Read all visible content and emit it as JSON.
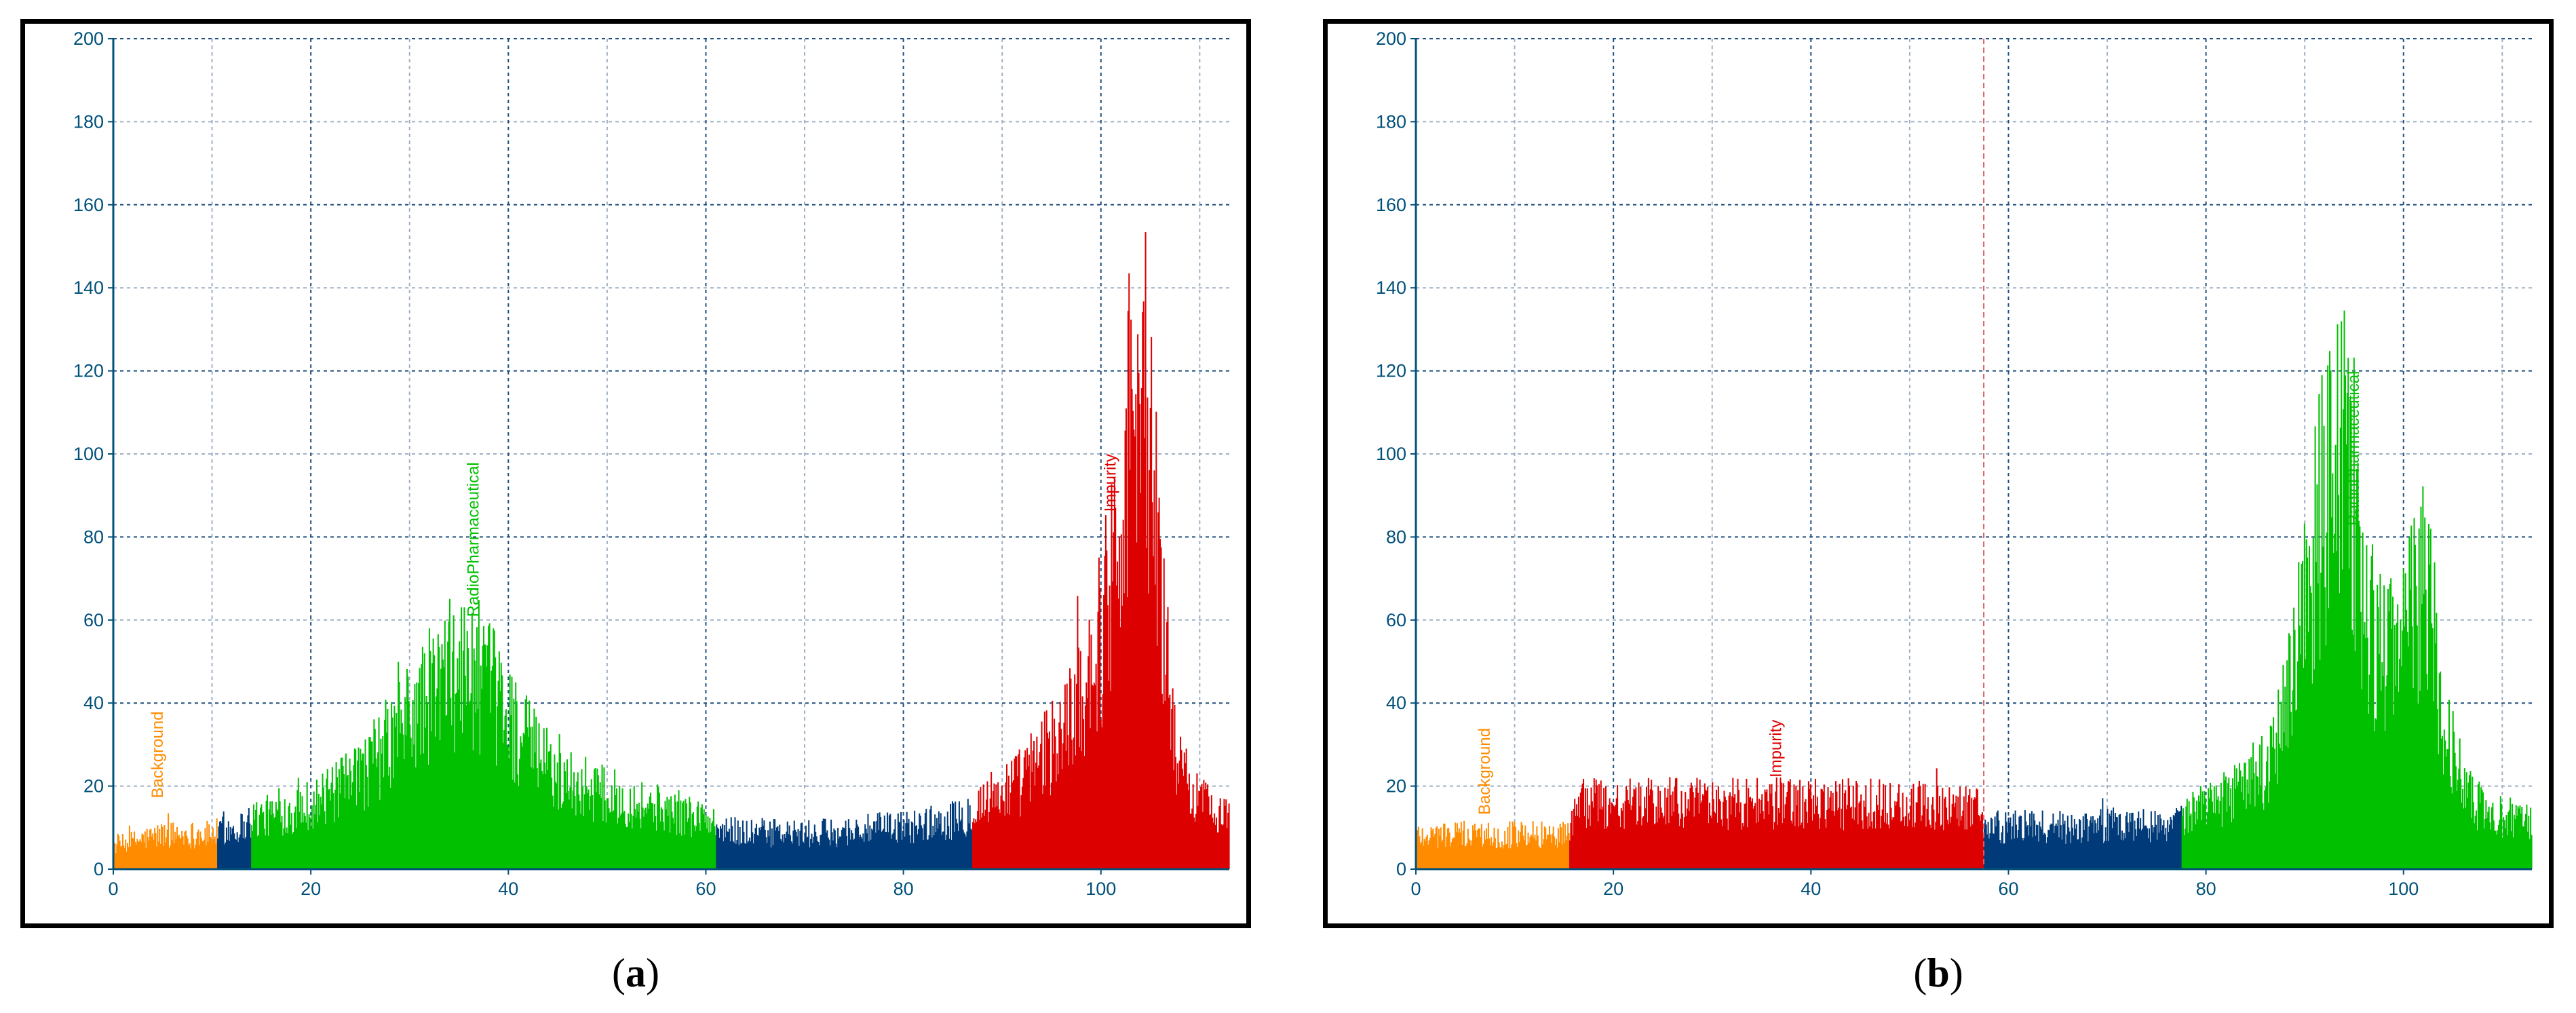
{
  "colors": {
    "background_region": "#ff8c00",
    "unassigned_region": "#003a78",
    "radiopharmaceutical_region": "#00c000",
    "impurity_region": "#dd0000",
    "axis": "#00507a",
    "grid_major": "#1e4f7f",
    "grid_minor": "#9fb0c4",
    "marker_line": "#e06060"
  },
  "captions": [
    {
      "paren_open": "(",
      "letter": "a",
      "paren_close": ")"
    },
    {
      "paren_open": "(",
      "letter": "b",
      "paren_close": ")"
    }
  ],
  "chart_data": [
    {
      "type": "bar",
      "panel": "a",
      "title": "",
      "xlabel": "",
      "ylabel": "",
      "xlim": [
        0,
        113
      ],
      "ylim": [
        0,
        200
      ],
      "x_ticks": [
        0,
        20,
        40,
        60,
        80,
        100
      ],
      "y_ticks": [
        0,
        20,
        40,
        60,
        80,
        100,
        120,
        140,
        160,
        180,
        200
      ],
      "grid": true,
      "regions": [
        {
          "label": "Background",
          "color": "#ff8c00",
          "x_start": 0,
          "x_end": 10.5,
          "label_x": 5,
          "label_y_top": 38
        },
        {
          "label": "",
          "color": "#003a78",
          "x_start": 10.5,
          "x_end": 14
        },
        {
          "label": "RadioPharmaceutical",
          "color": "#00c000",
          "x_start": 14,
          "x_end": 61,
          "label_x": 37,
          "label_y_top": 98
        },
        {
          "label": "",
          "color": "#003a78",
          "x_start": 61,
          "x_end": 87
        },
        {
          "label": "Impurity",
          "color": "#dd0000",
          "x_start": 87,
          "x_end": 113,
          "label_x": 101.5,
          "label_y_top": 100
        }
      ],
      "envelope": [
        [
          0,
          6
        ],
        [
          5,
          9
        ],
        [
          10,
          9
        ],
        [
          11,
          10
        ],
        [
          13,
          11
        ],
        [
          14,
          13
        ],
        [
          18,
          15
        ],
        [
          22,
          19
        ],
        [
          25,
          24
        ],
        [
          28,
          33
        ],
        [
          31,
          42
        ],
        [
          33,
          48
        ],
        [
          35,
          52
        ],
        [
          37,
          50
        ],
        [
          39,
          43
        ],
        [
          42,
          32
        ],
        [
          45,
          24
        ],
        [
          50,
          19
        ],
        [
          55,
          16
        ],
        [
          60,
          13
        ],
        [
          61,
          10
        ],
        [
          70,
          9
        ],
        [
          80,
          11
        ],
        [
          86,
          13
        ],
        [
          87,
          16
        ],
        [
          92,
          23
        ],
        [
          96,
          35
        ],
        [
          98,
          46
        ],
        [
          100,
          60
        ],
        [
          101,
          78
        ],
        [
          102,
          100
        ],
        [
          103,
          118
        ],
        [
          104,
          122
        ],
        [
          105,
          105
        ],
        [
          106,
          75
        ],
        [
          107,
          45
        ],
        [
          108,
          25
        ],
        [
          110,
          18
        ],
        [
          113,
          14
        ]
      ]
    },
    {
      "type": "bar",
      "panel": "b",
      "title": "",
      "xlabel": "",
      "ylabel": "",
      "xlim": [
        0,
        113
      ],
      "ylim": [
        0,
        200
      ],
      "x_ticks": [
        0,
        20,
        40,
        60,
        80,
        100
      ],
      "y_ticks": [
        0,
        20,
        40,
        60,
        80,
        100,
        120,
        140,
        160,
        180,
        200
      ],
      "grid": true,
      "marker_x": 57.5,
      "regions": [
        {
          "label": "Background",
          "color": "#ff8c00",
          "x_start": 0,
          "x_end": 15.5,
          "label_x": 7.5,
          "label_y_top": 34
        },
        {
          "label": "Impurity",
          "color": "#dd0000",
          "x_start": 15.5,
          "x_end": 57.5,
          "label_x": 37,
          "label_y_top": 36
        },
        {
          "label": "",
          "color": "#003a78",
          "x_start": 57.5,
          "x_end": 77.5
        },
        {
          "label": "RadioPharmaceutical",
          "color": "#00c000",
          "x_start": 77.5,
          "x_end": 113,
          "label_x": 95.5,
          "label_y_top": 120
        }
      ],
      "envelope": [
        [
          0,
          9
        ],
        [
          15,
          9
        ],
        [
          15.5,
          12
        ],
        [
          17,
          17
        ],
        [
          30,
          17
        ],
        [
          45,
          17
        ],
        [
          57,
          16
        ],
        [
          57.5,
          11
        ],
        [
          65,
          11
        ],
        [
          77,
          12
        ],
        [
          78,
          14
        ],
        [
          82,
          18
        ],
        [
          86,
          26
        ],
        [
          88,
          40
        ],
        [
          90,
          65
        ],
        [
          91.5,
          90
        ],
        [
          93,
          105
        ],
        [
          94,
          108
        ],
        [
          95,
          95
        ],
        [
          96,
          70
        ],
        [
          97,
          58
        ],
        [
          98,
          56
        ],
        [
          100,
          65
        ],
        [
          102,
          72
        ],
        [
          103,
          60
        ],
        [
          104,
          40
        ],
        [
          106,
          22
        ],
        [
          108,
          15
        ],
        [
          113,
          12
        ]
      ]
    }
  ]
}
